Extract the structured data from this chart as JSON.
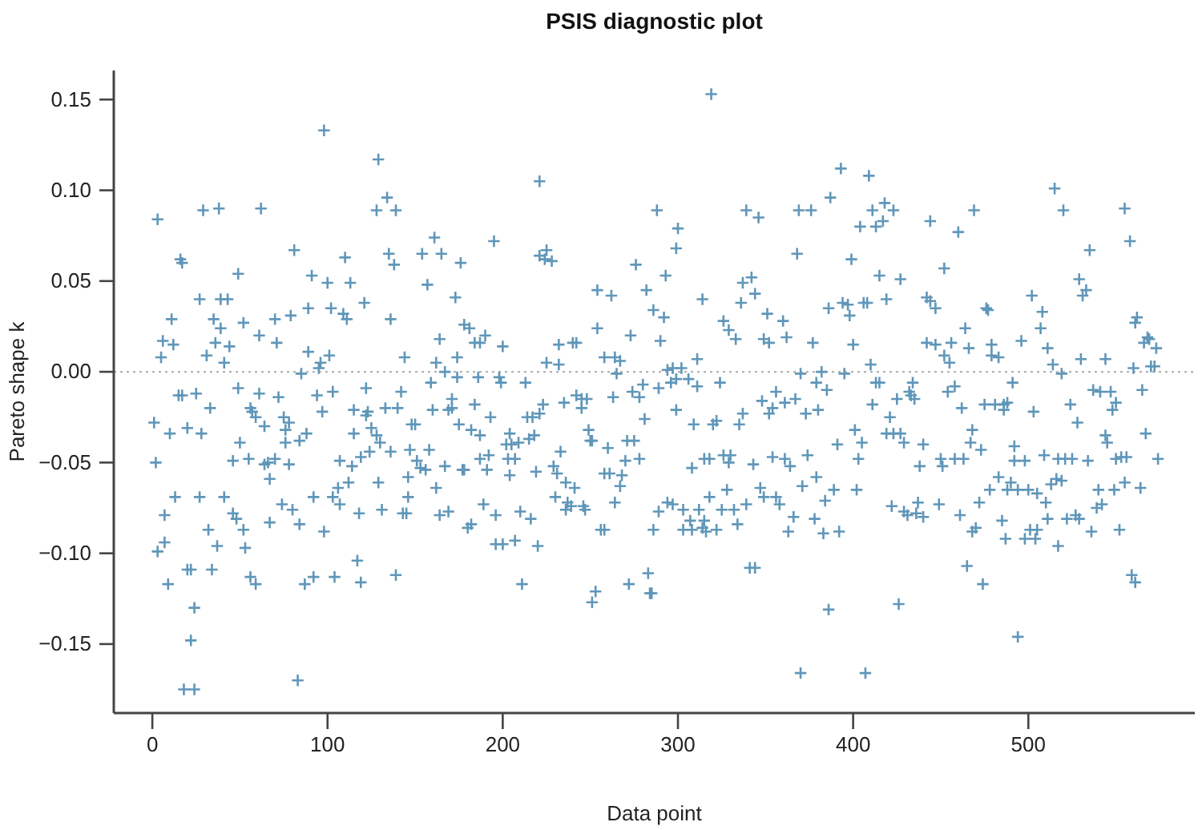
{
  "chart_data": {
    "type": "scatter",
    "title": "PSIS diagnostic plot",
    "xlabel": "Data point",
    "ylabel": "Pareto shape k",
    "x": [
      3,
      5,
      6,
      11,
      12,
      16,
      17,
      27,
      29,
      38,
      31,
      35,
      36,
      39,
      39,
      43,
      41,
      44,
      49,
      52,
      62,
      61,
      71,
      70,
      79,
      81,
      85,
      89,
      89,
      91,
      95,
      96,
      98,
      100,
      101,
      102,
      110,
      109,
      111,
      113,
      121,
      129,
      128,
      134,
      139,
      135,
      138,
      136,
      144,
      154,
      161,
      165,
      157,
      173,
      164,
      162,
      174,
      176,
      178,
      167,
      1,
      2,
      3,
      7,
      7,
      9,
      10,
      13,
      15,
      17,
      20,
      25,
      27,
      28,
      32,
      33,
      37,
      34,
      20,
      22,
      24,
      22,
      18,
      24,
      41,
      46,
      48,
      52,
      53,
      56,
      59,
      49,
      50,
      46,
      55,
      56,
      57,
      59,
      61,
      64,
      64,
      67,
      67,
      70,
      72,
      74,
      75,
      76,
      78,
      76,
      78,
      80,
      83,
      84,
      84,
      88,
      87,
      92,
      92,
      94,
      97,
      98,
      103,
      103,
      104,
      106,
      107,
      107,
      112,
      114,
      115,
      115,
      117,
      118,
      119,
      119,
      122,
      123,
      124,
      125,
      128,
      129,
      131,
      133,
      136,
      139,
      140,
      142,
      143,
      146,
      146,
      148,
      147,
      151,
      153,
      156,
      158,
      159,
      160,
      162,
      164,
      169,
      167,
      169,
      171,
      174,
      175,
      177,
      130,
      150,
      145,
      66,
      122,
      171,
      319,
      221,
      195,
      181,
      184,
      187,
      190,
      200,
      221,
      225,
      224,
      228,
      225,
      232,
      232,
      240,
      242,
      254,
      262,
      254,
      258,
      264,
      267,
      265,
      273,
      276,
      282,
      286,
      292,
      288,
      300,
      299,
      293,
      290,
      294,
      297,
      302,
      311,
      314,
      326,
      329,
      333,
      336,
      337,
      342,
      344,
      339,
      346,
      351,
      349,
      352,
      360,
      362,
      368,
      369,
      376,
      377,
      370,
      382,
      386,
      387,
      393,
      409,
      411,
      418,
      423,
      404,
      413,
      417,
      399,
      415,
      427,
      419,
      394,
      397,
      406,
      408,
      398,
      400,
      410,
      395,
      444,
      460,
      469,
      452,
      442,
      444,
      447,
      442,
      447,
      456,
      452,
      455,
      464,
      466,
      476,
      477,
      479,
      479,
      483,
      496,
      502,
      508,
      507,
      511,
      514,
      519,
      515,
      520,
      535,
      529,
      533,
      531,
      530,
      544,
      555,
      558,
      562,
      561,
      566,
      568,
      569,
      573,
      560,
      570,
      572,
      186,
      198,
      199,
      213,
      184,
      193,
      182,
      187,
      178,
      187,
      192,
      191,
      202,
      205,
      209,
      204,
      203,
      207,
      204,
      214,
      217,
      221,
      223,
      215,
      218,
      219,
      189,
      196,
      180,
      182,
      196,
      200,
      207,
      210,
      216,
      220,
      211,
      235,
      242,
      245,
      248,
      245,
      233,
      229,
      231,
      236,
      241,
      230,
      237,
      239,
      236,
      246,
      247,
      249,
      250,
      251,
      260,
      263,
      274,
      278,
      280,
      281,
      271,
      275,
      270,
      278,
      258,
      261,
      268,
      267,
      264,
      256,
      258,
      253,
      251,
      272,
      283,
      284,
      285,
      286,
      289,
      294,
      297,
      289,
      296,
      299,
      299,
      306,
      311,
      324,
      309,
      320,
      322,
      335,
      337,
      308,
      315,
      318,
      326,
      330,
      329,
      343,
      328,
      318,
      303,
      312,
      325,
      332,
      307,
      315,
      303,
      308,
      314,
      316,
      322,
      334,
      339,
      347,
      349,
      356,
      358,
      354,
      361,
      364,
      374,
      371,
      379,
      384,
      366,
      363,
      378,
      383,
      341,
      344,
      386,
      370,
      348,
      354,
      356,
      361,
      367,
      352,
      373,
      380,
      379,
      385,
      413,
      415,
      411,
      425,
      434,
      432,
      433,
      435,
      421,
      401,
      405,
      391,
      403,
      419,
      423,
      427,
      429,
      440,
      438,
      450,
      451,
      458,
      463,
      454,
      458,
      462,
      468,
      467,
      473,
      475,
      481,
      486,
      488,
      486,
      491,
      503,
      524,
      528,
      537,
      541,
      547,
      548,
      550,
      544,
      545,
      565,
      567,
      574,
      564,
      555,
      550,
      553,
      556,
      549,
      540,
      542,
      539,
      534,
      517,
      521,
      525,
      509,
      492,
      492,
      498,
      483,
      490,
      478,
      488,
      494,
      500,
      505,
      510,
      513,
      516,
      519,
      511,
      522,
      527,
      529,
      536,
      552,
      517,
      501,
      505,
      498,
      504,
      485,
      487,
      472,
      470,
      468,
      461,
      465,
      474,
      449,
      437,
      429,
      431,
      436,
      440,
      422,
      402,
      389,
      392,
      426,
      407,
      494,
      559,
      561
    ],
    "values": [
      0.084,
      0.008,
      0.017,
      0.029,
      0.015,
      0.062,
      0.06,
      0.04,
      0.089,
      0.09,
      0.009,
      0.029,
      0.016,
      0.024,
      0.04,
      0.04,
      0.005,
      0.014,
      0.054,
      0.027,
      0.09,
      0.02,
      0.016,
      0.029,
      0.031,
      0.067,
      -0.001,
      0.011,
      0.035,
      0.053,
      0.002,
      0.005,
      0.133,
      0.049,
      0.009,
      0.035,
      0.063,
      0.032,
      0.029,
      0.049,
      0.038,
      0.117,
      0.089,
      0.096,
      0.089,
      0.065,
      0.059,
      0.029,
      0.008,
      0.065,
      0.074,
      0.065,
      0.048,
      0.041,
      0.018,
      0.005,
      0.008,
      0.06,
      0.026,
      0.0,
      -0.028,
      -0.05,
      -0.099,
      -0.079,
      -0.094,
      -0.117,
      -0.034,
      -0.069,
      -0.013,
      -0.013,
      -0.031,
      -0.012,
      -0.069,
      -0.034,
      -0.087,
      -0.02,
      -0.096,
      -0.109,
      -0.109,
      -0.109,
      -0.13,
      -0.148,
      -0.175,
      -0.175,
      -0.069,
      -0.078,
      -0.081,
      -0.087,
      -0.097,
      -0.113,
      -0.117,
      -0.009,
      -0.039,
      -0.049,
      -0.048,
      -0.02,
      -0.022,
      -0.025,
      -0.012,
      -0.03,
      -0.051,
      -0.083,
      -0.059,
      -0.048,
      -0.014,
      -0.073,
      -0.025,
      -0.032,
      -0.028,
      -0.039,
      -0.051,
      -0.076,
      -0.17,
      -0.084,
      -0.038,
      -0.034,
      -0.117,
      -0.113,
      -0.069,
      -0.013,
      -0.022,
      -0.088,
      -0.011,
      -0.069,
      -0.113,
      -0.064,
      -0.073,
      -0.049,
      -0.061,
      -0.052,
      -0.021,
      -0.034,
      -0.104,
      -0.078,
      -0.116,
      -0.047,
      -0.009,
      -0.022,
      -0.044,
      -0.031,
      -0.035,
      -0.061,
      -0.076,
      -0.02,
      -0.044,
      -0.112,
      -0.02,
      -0.011,
      -0.078,
      -0.058,
      -0.069,
      -0.029,
      -0.043,
      -0.049,
      -0.053,
      -0.054,
      -0.043,
      -0.006,
      -0.021,
      -0.064,
      -0.079,
      -0.077,
      -0.052,
      -0.021,
      -0.015,
      -0.003,
      -0.029,
      -0.054,
      -0.039,
      -0.029,
      -0.078,
      -0.05,
      -0.024,
      -0.02,
      0.153,
      0.105,
      0.072,
      0.024,
      0.016,
      0.016,
      0.02,
      0.014,
      0.064,
      0.067,
      0.062,
      0.061,
      0.005,
      0.004,
      0.015,
      0.016,
      0.016,
      0.045,
      0.042,
      0.024,
      0.008,
      0.008,
      0.006,
      -0.001,
      0.02,
      0.059,
      0.045,
      0.034,
      0.03,
      0.089,
      0.079,
      0.068,
      0.053,
      0.017,
      0.001,
      0.002,
      0.002,
      0.007,
      0.04,
      0.028,
      0.023,
      0.018,
      0.038,
      0.049,
      0.052,
      0.043,
      0.089,
      0.085,
      0.032,
      0.018,
      0.016,
      0.028,
      0.019,
      0.065,
      0.089,
      0.089,
      0.016,
      -0.001,
      0.0,
      0.035,
      0.096,
      0.112,
      0.108,
      0.089,
      0.093,
      0.089,
      0.08,
      0.08,
      0.083,
      0.062,
      0.053,
      0.051,
      0.04,
      0.038,
      0.037,
      0.038,
      0.038,
      0.031,
      0.015,
      0.004,
      -0.001,
      0.083,
      0.077,
      0.089,
      0.057,
      0.041,
      0.039,
      0.035,
      0.016,
      0.015,
      0.016,
      0.009,
      0.005,
      0.024,
      0.013,
      0.035,
      0.034,
      0.015,
      0.009,
      0.008,
      0.017,
      0.042,
      0.033,
      0.024,
      0.013,
      0.004,
      -0.001,
      0.101,
      0.089,
      0.067,
      0.051,
      0.045,
      0.042,
      0.007,
      0.007,
      0.09,
      0.072,
      0.03,
      0.027,
      0.016,
      0.019,
      0.018,
      0.013,
      0.002,
      0.003,
      0.003,
      -0.003,
      -0.003,
      -0.006,
      -0.006,
      -0.018,
      -0.025,
      -0.032,
      -0.035,
      -0.054,
      -0.048,
      -0.046,
      -0.054,
      -0.04,
      -0.04,
      -0.039,
      -0.034,
      -0.048,
      -0.048,
      -0.057,
      -0.025,
      -0.025,
      -0.023,
      -0.018,
      -0.037,
      -0.035,
      -0.055,
      -0.073,
      -0.079,
      -0.086,
      -0.084,
      -0.095,
      -0.095,
      -0.093,
      -0.077,
      -0.081,
      -0.096,
      -0.117,
      -0.017,
      -0.013,
      -0.015,
      -0.015,
      -0.02,
      -0.044,
      -0.052,
      -0.056,
      -0.061,
      -0.064,
      -0.069,
      -0.072,
      -0.074,
      -0.076,
      -0.074,
      -0.076,
      -0.032,
      -0.038,
      -0.038,
      -0.042,
      -0.014,
      -0.011,
      -0.014,
      -0.007,
      -0.026,
      -0.038,
      -0.038,
      -0.049,
      -0.048,
      -0.056,
      -0.056,
      -0.057,
      -0.063,
      -0.072,
      -0.087,
      -0.087,
      -0.121,
      -0.127,
      -0.117,
      -0.111,
      -0.122,
      -0.122,
      -0.087,
      -0.077,
      -0.072,
      -0.073,
      -0.009,
      -0.006,
      -0.004,
      -0.021,
      -0.004,
      -0.008,
      -0.006,
      -0.029,
      -0.029,
      -0.027,
      -0.029,
      -0.023,
      -0.053,
      -0.048,
      -0.048,
      -0.046,
      -0.046,
      -0.05,
      -0.051,
      -0.065,
      -0.069,
      -0.076,
      -0.076,
      -0.076,
      -0.076,
      -0.082,
      -0.082,
      -0.087,
      -0.087,
      -0.086,
      -0.088,
      -0.087,
      -0.084,
      -0.073,
      -0.064,
      -0.069,
      -0.069,
      -0.073,
      -0.047,
      -0.048,
      -0.052,
      -0.046,
      -0.063,
      -0.058,
      -0.071,
      -0.08,
      -0.088,
      -0.081,
      -0.089,
      -0.108,
      -0.108,
      -0.131,
      -0.166,
      -0.016,
      -0.02,
      -0.011,
      -0.017,
      -0.015,
      -0.023,
      -0.023,
      -0.021,
      -0.006,
      -0.01,
      -0.006,
      -0.006,
      -0.018,
      -0.015,
      -0.006,
      -0.011,
      -0.013,
      -0.015,
      -0.025,
      -0.032,
      -0.039,
      -0.04,
      -0.048,
      -0.034,
      -0.034,
      -0.034,
      -0.039,
      -0.04,
      -0.052,
      -0.048,
      -0.052,
      -0.048,
      -0.048,
      -0.011,
      -0.008,
      -0.02,
      -0.032,
      -0.039,
      -0.043,
      -0.018,
      -0.018,
      -0.018,
      -0.017,
      -0.021,
      -0.006,
      -0.022,
      -0.018,
      -0.028,
      -0.01,
      -0.011,
      -0.011,
      -0.021,
      -0.017,
      -0.035,
      -0.039,
      -0.01,
      -0.034,
      -0.048,
      -0.064,
      -0.061,
      -0.048,
      -0.047,
      -0.047,
      -0.065,
      -0.065,
      -0.073,
      -0.075,
      -0.049,
      -0.048,
      -0.048,
      -0.048,
      -0.046,
      -0.041,
      -0.049,
      -0.049,
      -0.058,
      -0.061,
      -0.065,
      -0.065,
      -0.065,
      -0.065,
      -0.067,
      -0.072,
      -0.062,
      -0.059,
      -0.06,
      -0.081,
      -0.081,
      -0.079,
      -0.081,
      -0.088,
      -0.087,
      -0.096,
      -0.087,
      -0.087,
      -0.092,
      -0.092,
      -0.082,
      -0.092,
      -0.072,
      -0.086,
      -0.088,
      -0.079,
      -0.107,
      -0.117,
      -0.073,
      -0.072,
      -0.077,
      -0.079,
      -0.078,
      -0.08,
      -0.074,
      -0.065,
      -0.065,
      -0.088,
      -0.128,
      -0.166,
      -0.146,
      -0.112,
      -0.116
    ],
    "color": "#5f96b9",
    "marker": "cross",
    "xlim": [
      -22,
      595
    ],
    "ylim": [
      -0.188,
      0.166
    ],
    "xticks": [
      0,
      100,
      200,
      300,
      400,
      500
    ],
    "yticks": [
      {
        "value": -0.15,
        "label": "−0.15"
      },
      {
        "value": -0.1,
        "label": "−0.10"
      },
      {
        "value": -0.05,
        "label": "−0.05"
      },
      {
        "value": 0,
        "label": "0.00"
      },
      0.05,
      {
        "value": 0.1,
        "label": "0.10"
      },
      0.15
    ],
    "ref_lines": [
      {
        "axis": "y",
        "value": 0,
        "color": "#b3b3b3",
        "line_style": "dotted"
      }
    ]
  }
}
